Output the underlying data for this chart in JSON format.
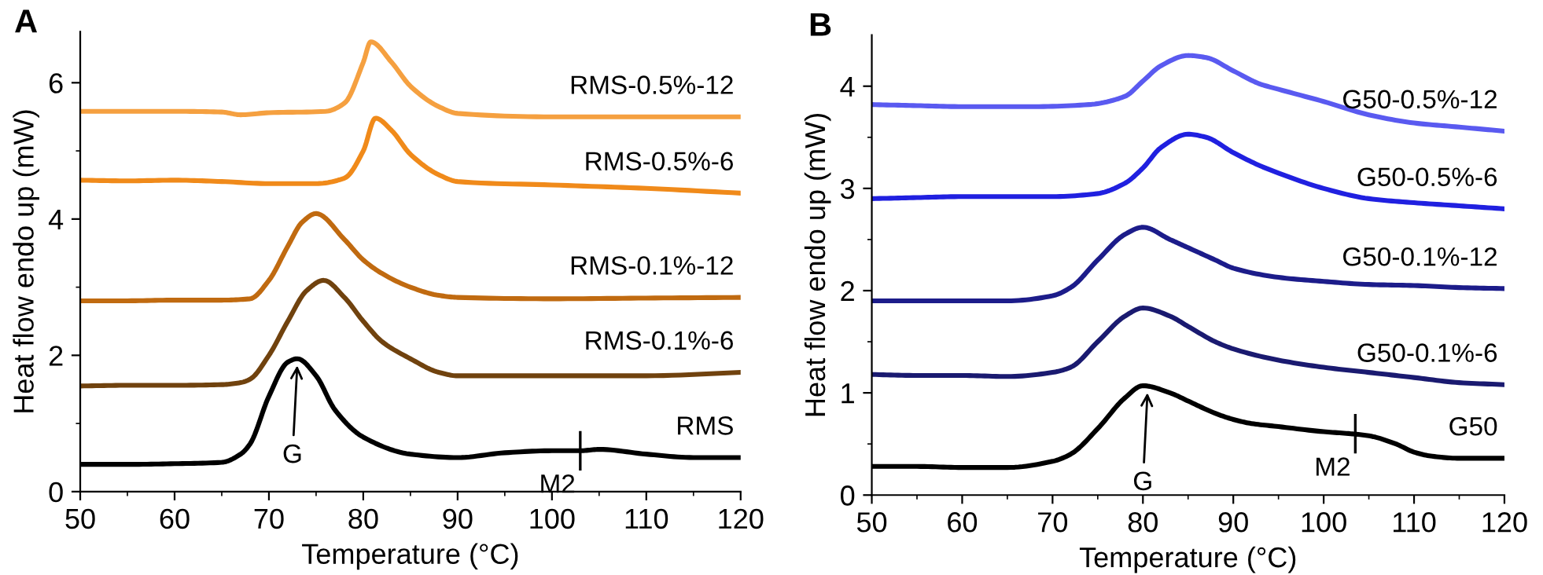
{
  "chart_data": [
    {
      "type": "line",
      "title": "A",
      "xlabel": "Temperature (°C)",
      "ylabel": "Heat flow endo up (mW)",
      "xlim": [
        50,
        120
      ],
      "ylim": [
        0,
        6.75
      ],
      "xticks": [
        50,
        {
          "value": 55,
          "label": null
        },
        60,
        {
          "value": 65,
          "label": null
        },
        70,
        {
          "value": 75,
          "label": null
        },
        80,
        {
          "value": 85,
          "label": null
        },
        90,
        {
          "value": 95,
          "label": null
        },
        100,
        {
          "value": 105,
          "label": null
        },
        110,
        {
          "value": 115,
          "label": null
        },
        120
      ],
      "yticks": [
        0,
        {
          "value": 1,
          "label": null
        },
        2,
        {
          "value": 3,
          "label": null
        },
        4,
        {
          "value": 5,
          "label": null
        },
        6
      ],
      "grid": false,
      "legend": false,
      "marker": "none",
      "line_style": "solid",
      "annotations": [
        {
          "text": "G",
          "x": 73,
          "y": 1.85
        },
        {
          "text": "M2",
          "x": 103,
          "y": 0.6
        }
      ],
      "series": [
        {
          "name": "RMS",
          "color": "#000000",
          "x": [
            50,
            55,
            60,
            65,
            67,
            68,
            70,
            72,
            73,
            75,
            77,
            80,
            85,
            90,
            95,
            100,
            103,
            105,
            110,
            115,
            120
          ],
          "values": [
            0.4,
            0.4,
            0.41,
            0.43,
            0.55,
            0.7,
            1.4,
            1.9,
            1.95,
            1.7,
            1.2,
            0.8,
            0.55,
            0.5,
            0.57,
            0.6,
            0.6,
            0.62,
            0.55,
            0.5,
            0.5
          ]
        },
        {
          "name": "RMS-0.1%-6",
          "color": "#70420e",
          "x": [
            50,
            55,
            60,
            65,
            67,
            68,
            70,
            72,
            74,
            75.8,
            78,
            80,
            82,
            85,
            88,
            90,
            100,
            110,
            120
          ],
          "values": [
            1.55,
            1.56,
            1.56,
            1.57,
            1.6,
            1.65,
            2.0,
            2.5,
            2.95,
            3.1,
            2.85,
            2.5,
            2.2,
            1.95,
            1.75,
            1.7,
            1.7,
            1.7,
            1.75
          ]
        },
        {
          "name": "RMS-0.1%-12",
          "color": "#c06a10",
          "x": [
            50,
            55,
            60,
            65,
            68,
            70,
            72,
            73.5,
            75,
            78,
            80,
            82,
            85,
            88,
            90,
            100,
            110,
            120
          ],
          "values": [
            2.8,
            2.8,
            2.81,
            2.81,
            2.83,
            3.1,
            3.6,
            3.95,
            4.08,
            3.7,
            3.4,
            3.2,
            3.0,
            2.88,
            2.85,
            2.83,
            2.84,
            2.85
          ]
        },
        {
          "name": "RMS-0.5%-6",
          "color": "#f08a1a",
          "x": [
            50,
            55,
            60,
            65,
            70,
            75,
            78,
            80,
            81.3,
            83,
            85,
            88,
            90,
            100,
            110,
            120
          ],
          "values": [
            4.57,
            4.56,
            4.57,
            4.55,
            4.52,
            4.52,
            4.6,
            5.0,
            5.48,
            5.3,
            4.95,
            4.65,
            4.55,
            4.5,
            4.45,
            4.38
          ]
        },
        {
          "name": "RMS-0.5%-12",
          "color": "#f5a040",
          "x": [
            50,
            55,
            60,
            65,
            67,
            70,
            76,
            78,
            80,
            80.8,
            83,
            85,
            88,
            90,
            100,
            110,
            120
          ],
          "values": [
            5.58,
            5.58,
            5.58,
            5.57,
            5.53,
            5.56,
            5.58,
            5.7,
            6.3,
            6.6,
            6.3,
            5.95,
            5.65,
            5.55,
            5.5,
            5.5,
            5.5
          ]
        }
      ]
    },
    {
      "type": "line",
      "title": "B",
      "xlabel": "Temperature (°C)",
      "ylabel": "Heat flow endo up (mW)",
      "xlim": [
        50,
        120
      ],
      "ylim": [
        0,
        4.5
      ],
      "xticks": [
        50,
        {
          "value": 55,
          "label": null
        },
        60,
        {
          "value": 65,
          "label": null
        },
        70,
        {
          "value": 75,
          "label": null
        },
        80,
        {
          "value": 85,
          "label": null
        },
        90,
        {
          "value": 95,
          "label": null
        },
        100,
        {
          "value": 105,
          "label": null
        },
        110,
        {
          "value": 115,
          "label": null
        },
        120
      ],
      "yticks": [
        0,
        {
          "value": 0.5,
          "label": null
        },
        1,
        {
          "value": 1.5,
          "label": null
        },
        2,
        {
          "value": 2.5,
          "label": null
        },
        3,
        {
          "value": 3.5,
          "label": null
        },
        4
      ],
      "grid": false,
      "legend": false,
      "marker": "none",
      "line_style": "solid",
      "annotations": [
        {
          "text": "G",
          "x": 80.5,
          "y": 1.0
        },
        {
          "text": "M2",
          "x": 103.5,
          "y": 0.6
        }
      ],
      "series": [
        {
          "name": "G50",
          "color": "#000000",
          "x": [
            50,
            55,
            60,
            65,
            70,
            72,
            75,
            78,
            80,
            83,
            85,
            88,
            90,
            92,
            95,
            100,
            103,
            105,
            108,
            110,
            112,
            115,
            120
          ],
          "values": [
            0.28,
            0.28,
            0.27,
            0.27,
            0.33,
            0.4,
            0.65,
            0.95,
            1.07,
            1.0,
            0.92,
            0.8,
            0.74,
            0.7,
            0.67,
            0.62,
            0.6,
            0.58,
            0.5,
            0.42,
            0.38,
            0.36,
            0.36
          ]
        },
        {
          "name": "G50-0.1%-6",
          "color": "#1a1a70",
          "x": [
            50,
            55,
            60,
            65,
            70,
            72,
            75,
            78,
            80,
            83,
            85,
            88,
            90,
            95,
            100,
            105,
            110,
            115,
            120
          ],
          "values": [
            1.18,
            1.17,
            1.17,
            1.16,
            1.2,
            1.25,
            1.5,
            1.75,
            1.83,
            1.75,
            1.65,
            1.5,
            1.43,
            1.32,
            1.25,
            1.2,
            1.15,
            1.1,
            1.08
          ]
        },
        {
          "name": "G50-0.1%-12",
          "color": "#1c1c8a",
          "x": [
            50,
            55,
            60,
            65,
            70,
            72,
            75,
            78,
            80,
            83,
            85,
            88,
            90,
            95,
            100,
            105,
            110,
            115,
            120
          ],
          "values": [
            1.9,
            1.9,
            1.9,
            1.9,
            1.95,
            2.03,
            2.3,
            2.55,
            2.62,
            2.5,
            2.42,
            2.3,
            2.22,
            2.13,
            2.09,
            2.06,
            2.05,
            2.03,
            2.02
          ]
        },
        {
          "name": "G50-0.5%-6",
          "color": "#2020e0",
          "x": [
            50,
            55,
            60,
            65,
            70,
            75,
            78,
            80,
            82,
            85,
            87,
            90,
            93,
            95,
            100,
            105,
            110,
            115,
            120
          ],
          "values": [
            2.9,
            2.91,
            2.92,
            2.92,
            2.92,
            2.95,
            3.05,
            3.2,
            3.4,
            3.53,
            3.5,
            3.35,
            3.22,
            3.15,
            3.0,
            2.9,
            2.86,
            2.83,
            2.8
          ]
        },
        {
          "name": "G50-0.5%-12",
          "color": "#5a5af0",
          "x": [
            50,
            55,
            60,
            65,
            68,
            74,
            78,
            80,
            82,
            85,
            87,
            90,
            93,
            95,
            100,
            105,
            110,
            115,
            120
          ],
          "values": [
            3.82,
            3.81,
            3.8,
            3.8,
            3.8,
            3.82,
            3.9,
            4.05,
            4.2,
            4.3,
            4.28,
            4.15,
            4.02,
            3.97,
            3.85,
            3.72,
            3.64,
            3.6,
            3.56
          ]
        }
      ]
    }
  ]
}
